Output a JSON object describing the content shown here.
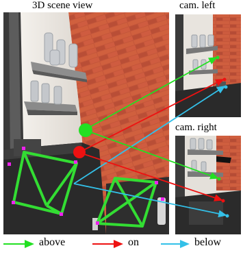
{
  "titles": {
    "scene": "3D scene view",
    "left": "cam. left",
    "right": "cam. right"
  },
  "legend": [
    {
      "label": "above",
      "color": "#22e022"
    },
    {
      "label": "on",
      "color": "#ee1111"
    },
    {
      "label": "below",
      "color": "#33c0e8"
    }
  ],
  "colors": {
    "box": "#33dd33",
    "corner": "#ee22ee",
    "brick": "#c8583c",
    "wall": "#ece8e2",
    "shelf": "#8a8a8a",
    "counter": "#262626"
  }
}
